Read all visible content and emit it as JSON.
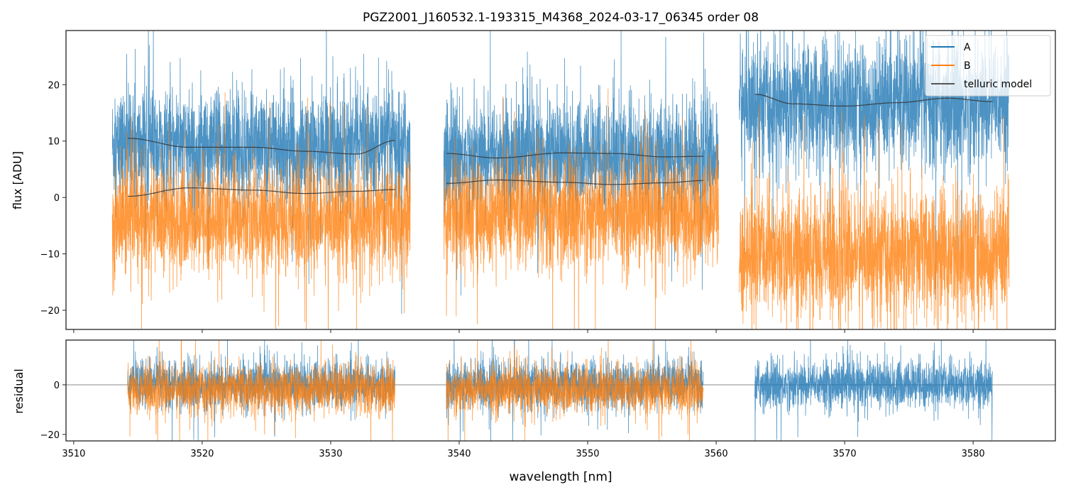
{
  "chart_data": [
    {
      "type": "line",
      "title": "PGZ2001_J160532.1-193315_M4368_2024-03-17_06345  order 08",
      "xlabel": "",
      "ylabel": "flux [ADU]",
      "xlim": [
        3509.4,
        3586.4
      ],
      "ylim": [
        -23.4,
        29.6
      ],
      "yticks": [
        -20,
        -10,
        0,
        10,
        20
      ],
      "ytick_labels": [
        "−20",
        "−10",
        "0",
        "10",
        "20"
      ],
      "xticks": [
        3510,
        3520,
        3530,
        3540,
        3550,
        3560,
        3570,
        3580
      ],
      "legend": {
        "placement": "top-right",
        "entries": [
          "A",
          "B",
          "telluric model"
        ]
      },
      "colors": {
        "A": "#1f77b4",
        "B": "#ff7f0e",
        "telluric model": "#333333"
      },
      "series": [
        {
          "name": "A",
          "segments": [
            {
              "x_range": [
                3513.0,
                3536.2
              ],
              "mean": 9,
              "noise": 6
            },
            {
              "x_range": [
                3538.8,
                3560.2
              ],
              "mean": 7.5,
              "noise": 6
            },
            {
              "x_range": [
                3561.8,
                3582.8
              ],
              "mean": 16.5,
              "noise": 7
            }
          ]
        },
        {
          "name": "B",
          "segments": [
            {
              "x_range": [
                3513.0,
                3536.2
              ],
              "mean": -4,
              "noise": 6
            },
            {
              "x_range": [
                3538.8,
                3560.2
              ],
              "mean": -3,
              "noise": 6
            },
            {
              "x_range": [
                3561.8,
                3582.8
              ],
              "mean": -10,
              "noise": 7
            }
          ]
        },
        {
          "name": "telluric model",
          "curves": [
            {
              "x": [
                3514.2,
                3519,
                3524,
                3528,
                3532,
                3535
              ],
              "y": [
                10.5,
                8.9,
                8.9,
                8.2,
                7.7,
                10.1
              ]
            },
            {
              "x": [
                3514.2,
                3519,
                3524,
                3528,
                3532,
                3535
              ],
              "y": [
                0.2,
                1.7,
                1.3,
                0.7,
                1.1,
                1.4
              ]
            },
            {
              "x": [
                3539,
                3543,
                3548,
                3552,
                3556,
                3559
              ],
              "y": [
                7.8,
                7.0,
                7.9,
                7.8,
                7.2,
                7.3
              ]
            },
            {
              "x": [
                3539,
                3543,
                3548,
                3552,
                3556,
                3559
              ],
              "y": [
                2.5,
                3.1,
                2.7,
                2.3,
                2.6,
                3.0
              ]
            },
            {
              "x": [
                3563,
                3566,
                3570,
                3574,
                3578,
                3581.5
              ],
              "y": [
                18.3,
                16.6,
                16.2,
                16.8,
                17.6,
                17.0
              ]
            }
          ]
        }
      ]
    },
    {
      "type": "line",
      "xlabel": "wavelength [nm]",
      "ylabel": "residual",
      "xlim": [
        3509.4,
        3586.4
      ],
      "ylim": [
        -22.6,
        18
      ],
      "yticks": [
        -20,
        0
      ],
      "ytick_labels": [
        "−20",
        "0"
      ],
      "xticks": [
        3510,
        3520,
        3530,
        3540,
        3550,
        3560,
        3570,
        3580
      ],
      "xtick_labels": [
        "3510",
        "3520",
        "3530",
        "3540",
        "3550",
        "3560",
        "3570",
        "3580"
      ],
      "zero_line": 0,
      "series": [
        {
          "name": "A",
          "segments": [
            {
              "x_range": [
                3514.2,
                3535
              ],
              "mean": 0,
              "noise": 6
            },
            {
              "x_range": [
                3539,
                3559
              ],
              "mean": 0,
              "noise": 6
            },
            {
              "x_range": [
                3563,
                3581.5
              ],
              "mean": 0,
              "noise": 6
            }
          ]
        },
        {
          "name": "B",
          "segments": [
            {
              "x_range": [
                3514.2,
                3535
              ],
              "mean": -2,
              "noise": 6
            },
            {
              "x_range": [
                3539,
                3559
              ],
              "mean": -2,
              "noise": 6
            }
          ]
        }
      ]
    }
  ]
}
